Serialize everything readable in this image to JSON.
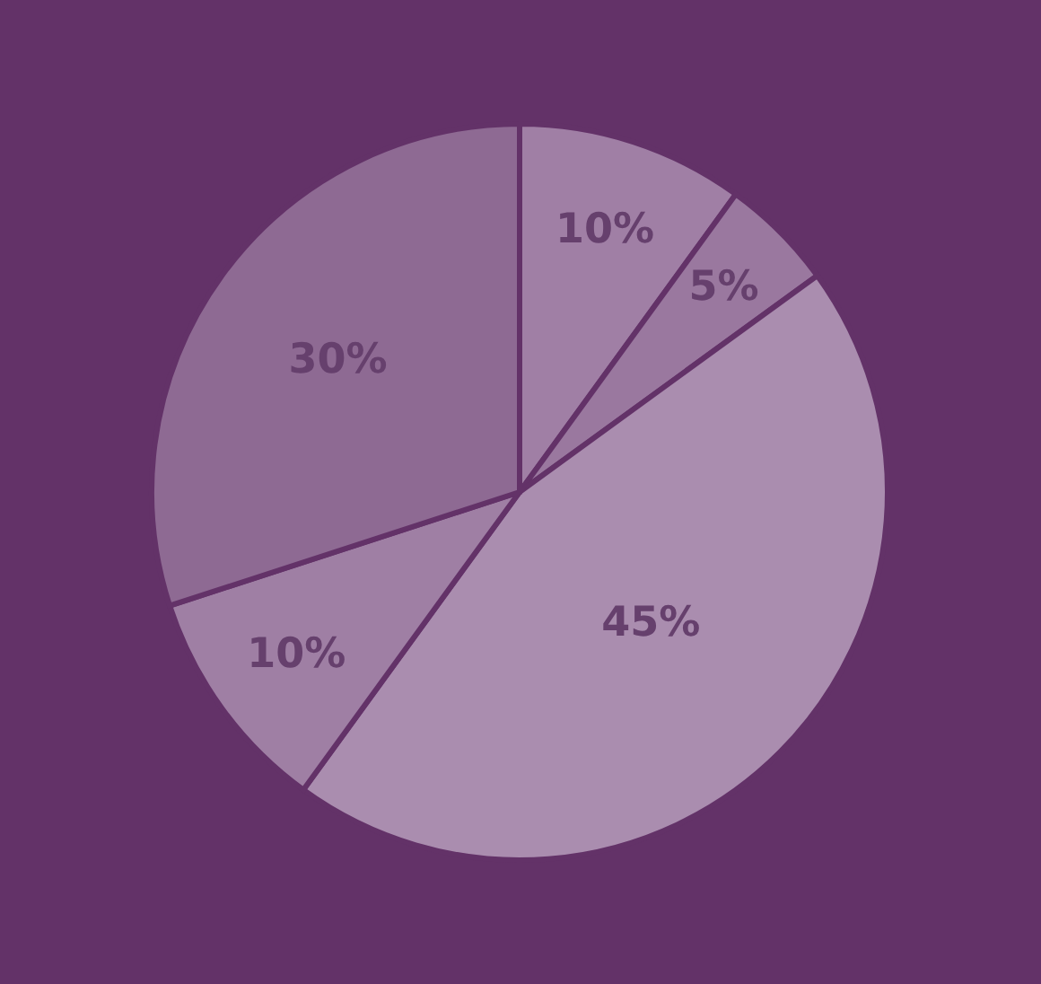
{
  "chart_data": {
    "type": "pie",
    "categories": [
      null,
      null,
      null,
      null,
      null
    ],
    "values": [
      10,
      5,
      45,
      10,
      30
    ],
    "colors": [
      "#a07fa5",
      "#9a789f",
      "#aa8daf",
      "#9f7fa4",
      "#8e6a93"
    ],
    "value_labels": [
      "10%",
      "5%",
      "45%",
      "10%",
      "30%"
    ]
  }
}
